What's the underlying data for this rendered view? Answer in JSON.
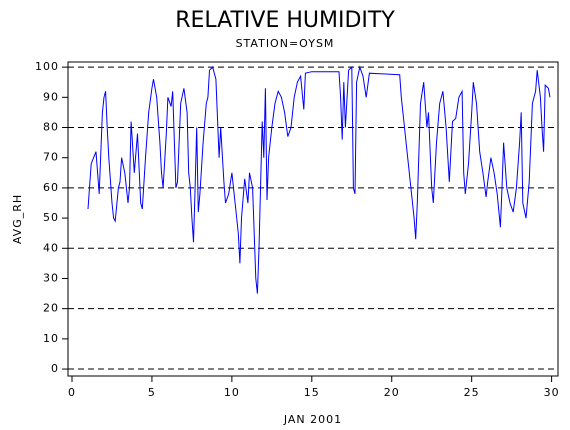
{
  "chart_data": {
    "type": "line",
    "title": "RELATIVE HUMIDITY",
    "subtitle": "STATION=OYSM",
    "xlabel": "JAN 2001",
    "ylabel": "AVG_RH",
    "xlim": [
      -0.25,
      30.4
    ],
    "ylim": [
      -2.3,
      101.7
    ],
    "xticks": [
      0,
      5,
      10,
      15,
      20,
      25,
      30
    ],
    "yticks": [
      0,
      10,
      20,
      30,
      40,
      50,
      60,
      70,
      80,
      90,
      100
    ],
    "ygrid": [
      0,
      20,
      40,
      60,
      80,
      100
    ],
    "series": [
      {
        "name": "AVG_RH",
        "color": "#0000ff",
        "x": [
          1.0,
          1.2,
          1.5,
          1.7,
          1.9,
          2.0,
          2.1,
          2.2,
          2.3,
          2.5,
          2.6,
          2.7,
          2.9,
          3.0,
          3.1,
          3.3,
          3.5,
          3.6,
          3.7,
          3.9,
          4.1,
          4.3,
          4.4,
          4.6,
          4.8,
          5.0,
          5.1,
          5.3,
          5.5,
          5.6,
          5.7,
          5.9,
          6.0,
          6.2,
          6.3,
          6.5,
          6.6,
          6.8,
          7.0,
          7.2,
          7.3,
          7.4,
          7.5,
          7.6,
          7.7,
          7.8,
          7.9,
          8.0,
          8.2,
          8.4,
          8.5,
          8.6,
          8.8,
          9.0,
          9.2,
          9.3,
          9.5,
          9.6,
          9.8,
          10.0,
          10.2,
          10.4,
          10.5,
          10.6,
          10.8,
          11.0,
          11.1,
          11.3,
          11.5,
          11.6,
          11.7,
          11.9,
          12.0,
          12.1,
          12.2,
          12.3,
          12.5,
          12.7,
          12.9,
          13.1,
          13.3,
          13.5,
          13.7,
          13.9,
          14.1,
          14.3,
          14.5,
          14.6,
          15.0,
          16.0,
          16.7,
          16.8,
          16.9,
          17.0,
          17.1,
          17.3,
          17.5,
          17.6,
          17.7,
          17.8,
          18.0,
          18.2,
          18.4,
          18.6,
          20.5,
          20.6,
          20.8,
          21.0,
          21.2,
          21.4,
          21.5,
          21.6,
          21.8,
          22.0,
          22.2,
          22.3,
          22.5,
          22.6,
          22.8,
          23.0,
          23.2,
          23.4,
          23.6,
          23.8,
          24.0,
          24.2,
          24.4,
          24.5,
          24.6,
          24.8,
          25.0,
          25.1,
          25.3,
          25.5,
          25.7,
          25.9,
          26.0,
          26.2,
          26.4,
          26.6,
          26.8,
          26.9,
          27.0,
          27.2,
          27.4,
          27.6,
          27.8,
          28.0,
          28.1,
          28.2,
          28.4,
          28.6,
          28.8,
          29.0,
          29.1,
          29.3,
          29.4,
          29.5,
          29.6,
          29.8,
          29.9
        ],
        "values": [
          53,
          68,
          72,
          58,
          85,
          90,
          92,
          80,
          70,
          55,
          50,
          49,
          60,
          62,
          70,
          65,
          55,
          60,
          82,
          65,
          78,
          55,
          53,
          70,
          85,
          93,
          96,
          90,
          75,
          65,
          60,
          78,
          90,
          87,
          92,
          60,
          62,
          88,
          93,
          85,
          65,
          60,
          50,
          42,
          60,
          80,
          52,
          58,
          75,
          88,
          90,
          99,
          100,
          96,
          70,
          80,
          62,
          55,
          58,
          65,
          55,
          45,
          35,
          50,
          63,
          55,
          65,
          60,
          30,
          25,
          40,
          82,
          70,
          93,
          56,
          70,
          80,
          88,
          92,
          90,
          85,
          77,
          80,
          90,
          95,
          97,
          86,
          98,
          98.5,
          98.5,
          98.5,
          90,
          76,
          95,
          80,
          99,
          100,
          60,
          58,
          95,
          100,
          97,
          90,
          98,
          97.5,
          90,
          80,
          70,
          60,
          50,
          43,
          55,
          88,
          95,
          80,
          85,
          60,
          55,
          75,
          88,
          92,
          80,
          62,
          82,
          83,
          90,
          92,
          65,
          58,
          68,
          85,
          95,
          88,
          72,
          65,
          57,
          62,
          70,
          65,
          58,
          47,
          60,
          75,
          60,
          55,
          52,
          60,
          75,
          85,
          55,
          50,
          62,
          88,
          92,
          99,
          90,
          80,
          72,
          94,
          93,
          90
        ]
      }
    ]
  }
}
